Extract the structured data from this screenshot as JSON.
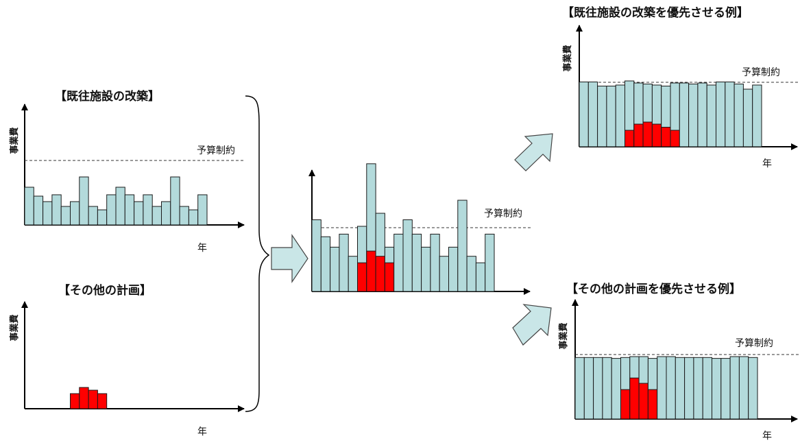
{
  "labels": {
    "existing_title": "【既往施設の改築】",
    "other_title": "【その他の計画】",
    "existing_priority_title": "【既往施設の改築を優先させる例】",
    "other_priority_title": "【その他の計画を優先させる例】",
    "y_axis": "事業費",
    "x_axis": "年",
    "budget": "予算制約"
  },
  "colors": {
    "existing_bar": "#b3dadb",
    "other_bar": "#ff0000",
    "arrow_fill": "#c9e6e7",
    "axis": "#000000"
  },
  "chart_data": [
    {
      "type": "bar",
      "title": "【既往施設の改築】",
      "xlabel": "年",
      "ylabel": "事業費",
      "budget_label": "予算制約",
      "budget": 5.4,
      "ylim": [
        0,
        10
      ],
      "series": [
        {
          "values": [
            5.5,
            4.2,
            3.4,
            4.4,
            2.7,
            3.4,
            7.0,
            2.7,
            2.2,
            4.4,
            5.5,
            4.4,
            3.4,
            4.4,
            2.7,
            3.4,
            7.0,
            2.7,
            2.2,
            4.4
          ]
        }
      ]
    },
    {
      "type": "bar",
      "title": "【その他の計画】",
      "xlabel": "年",
      "ylabel": "事業費",
      "ylim": [
        0,
        10
      ],
      "series": [
        {
          "values": [
            0,
            0,
            0,
            0,
            0,
            2.2,
            3.1,
            2.7,
            2.2,
            0,
            0,
            0,
            0,
            0,
            0,
            0,
            0,
            0,
            0,
            0
          ]
        }
      ]
    },
    {
      "type": "bar",
      "title": "",
      "xlabel": "",
      "ylabel": "",
      "budget_label": "予算制約",
      "budget": 5.4,
      "ylim": [
        0,
        10
      ],
      "series": [
        {
          "values": [
            5.5,
            4.2,
            3.4,
            4.4,
            2.7,
            5.0,
            9.8,
            6.0,
            3.4,
            4.4,
            5.5,
            4.4,
            3.4,
            4.4,
            2.7,
            3.4,
            7.0,
            2.7,
            2.2,
            4.4
          ]
        },
        {
          "values": [
            0,
            0,
            0,
            0,
            0,
            2.2,
            3.1,
            2.7,
            2.2,
            0,
            0,
            0,
            0,
            0,
            0,
            0,
            0,
            0,
            0,
            0
          ]
        }
      ]
    },
    {
      "type": "bar",
      "title": "【既往施設の改築を優先させる例】",
      "xlabel": "年",
      "ylabel": "事業費",
      "budget_label": "予算制約",
      "budget": 6.6,
      "ylim": [
        0,
        10
      ],
      "series": [
        {
          "values": [
            6.3,
            6.3,
            5.9,
            5.9,
            6.0,
            6.4,
            6.2,
            6.1,
            6.0,
            5.9,
            6.2,
            6.2,
            6.1,
            6.2,
            6.0,
            6.3,
            6.3,
            6.1,
            5.6,
            6.0
          ]
        },
        {
          "values": [
            0,
            0,
            0,
            0,
            0,
            1.6,
            2.2,
            2.4,
            2.2,
            1.9,
            1.6,
            0,
            0,
            0,
            0,
            0,
            0,
            0,
            0,
            0
          ]
        }
      ]
    },
    {
      "type": "bar",
      "title": "【その他の計画を優先させる例】",
      "xlabel": "年",
      "ylabel": "事業費",
      "budget_label": "予算制約",
      "budget": 7.2,
      "ylim": [
        0,
        10
      ],
      "series": [
        {
          "values": [
            6.9,
            6.9,
            6.9,
            6.9,
            6.8,
            6.9,
            7.0,
            7.0,
            6.8,
            7.0,
            7.0,
            6.9,
            6.9,
            6.9,
            6.9,
            6.8,
            6.8,
            7.0,
            7.0,
            6.9
          ]
        },
        {
          "values": [
            0,
            0,
            0,
            0,
            0,
            3.3,
            4.6,
            4.0,
            3.3,
            0,
            0,
            0,
            0,
            0,
            0,
            0,
            0,
            0,
            0,
            0
          ]
        }
      ]
    }
  ]
}
